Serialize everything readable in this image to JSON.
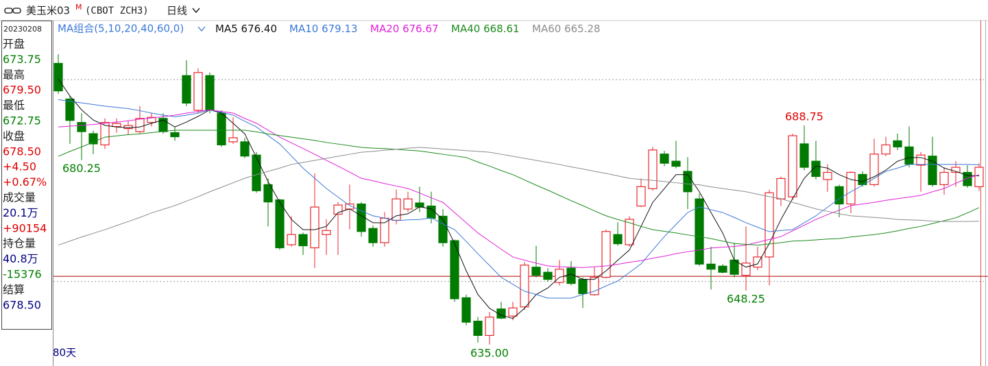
{
  "toolbar": {
    "symbol": "美玉米03",
    "badge": "M",
    "code": "(CBOT ZCH3)",
    "period": "日线"
  },
  "info_panel": {
    "date": "20230208",
    "rows": [
      {
        "text": "开盘",
        "color": "#222222"
      },
      {
        "text": "673.75",
        "color": "#008000"
      },
      {
        "text": "最高",
        "color": "#222222"
      },
      {
        "text": "679.50",
        "color": "#e00000"
      },
      {
        "text": "最低",
        "color": "#222222"
      },
      {
        "text": "672.75",
        "color": "#008000"
      },
      {
        "text": "收盘",
        "color": "#222222"
      },
      {
        "text": "678.50",
        "color": "#e00000"
      },
      {
        "text": "+4.50",
        "color": "#e00000"
      },
      {
        "text": "+0.67%",
        "color": "#e00000"
      },
      {
        "text": "成交量",
        "color": "#222222"
      },
      {
        "text": "20.1万",
        "color": "#000080"
      },
      {
        "text": "+90154",
        "color": "#e00000"
      },
      {
        "text": "持仓量",
        "color": "#222222"
      },
      {
        "text": "40.8万",
        "color": "#000080"
      },
      {
        "text": "-15376",
        "color": "#008000"
      },
      {
        "text": "结算",
        "color": "#222222"
      },
      {
        "text": "678.50",
        "color": "#000080"
      }
    ]
  },
  "chart_data": {
    "type": "candlestick",
    "ma_legend": "MA组合(5,10,20,40,60,0)",
    "days_label": "80天",
    "ylim": [
      629.75,
      714.5
    ],
    "up_color": "#e8262b",
    "down_color": "#007a00",
    "reference_line": {
      "value": 651.75,
      "color": "#b00000"
    },
    "dotted_levels": [
      700,
      650.5
    ],
    "candles": {
      "open": [
        704,
        695.25,
        689.5,
        686.75,
        684,
        688.5,
        688,
        687.25,
        689.5,
        690.5,
        687,
        701,
        692.5,
        701,
        691.75,
        684.75,
        684.75,
        681.5,
        674.25,
        670.5,
        659.5,
        662,
        658.75,
        662,
        667,
        668.25,
        669.5,
        663.5,
        660,
        665.5,
        668.25,
        669.75,
        669,
        666.5,
        660.5,
        646.5,
        640.75,
        637.25,
        643.75,
        642,
        644.25,
        654,
        652.75,
        650.25,
        653.75,
        651,
        647.25,
        651.5,
        662,
        659.5,
        669,
        673.25,
        681.75,
        680,
        677.5,
        670.75,
        654.75,
        654.25,
        655.75,
        652,
        654,
        656.5,
        670.75,
        671.25,
        684.25,
        680,
        675.5,
        673.75,
        669.5,
        676.75,
        674.25,
        681.75,
        685,
        683.5,
        679,
        681.25,
        674.25,
        677.25,
        677.25,
        673.75
      ],
      "high": [
        706.25,
        696,
        691.75,
        687.5,
        690.5,
        690.5,
        690,
        693.5,
        691.75,
        691.75,
        688.5,
        704.75,
        702.75,
        701.75,
        692.5,
        690.75,
        685.75,
        682.25,
        675.75,
        670.75,
        666.5,
        662.5,
        677,
        665.75,
        670,
        674.25,
        670,
        664.25,
        667.5,
        673,
        672.5,
        673.75,
        672.5,
        668.25,
        660.75,
        647.25,
        641.75,
        643,
        645.5,
        645.5,
        655.25,
        659.25,
        653.75,
        655.75,
        655.5,
        651.5,
        654,
        663.25,
        665,
        666.5,
        675.75,
        683.5,
        682.5,
        685,
        681,
        672,
        659,
        654.75,
        660,
        664,
        659,
        673,
        676.25,
        686.75,
        688.75,
        685,
        679.25,
        674.25,
        677.5,
        677.5,
        685.5,
        686,
        686.75,
        688.5,
        682.25,
        686,
        678.5,
        680,
        679,
        679.5
      ],
      "low": [
        696.5,
        684.25,
        680.25,
        681.75,
        683,
        687,
        686.5,
        686.75,
        688.5,
        686.75,
        685,
        693.5,
        691.75,
        691.75,
        683.5,
        684.25,
        680.75,
        672.25,
        664,
        658.25,
        659,
        657,
        653.75,
        657,
        657,
        663.25,
        661.5,
        659,
        659,
        664.5,
        667.5,
        667.5,
        664.75,
        659,
        645.5,
        639.75,
        635.5,
        635,
        641.25,
        641,
        643.5,
        651.5,
        650.5,
        649.5,
        649.5,
        644,
        647,
        651.25,
        659.25,
        659,
        668.75,
        672.75,
        678.75,
        678.25,
        668.25,
        654.25,
        648.5,
        652.5,
        651.5,
        648.25,
        653.25,
        649.5,
        669,
        670.5,
        677.75,
        675.5,
        672.5,
        666.25,
        667.25,
        673.75,
        673.75,
        681.25,
        682.75,
        678.5,
        672.5,
        673.75,
        671.75,
        673.75,
        673.5,
        672.75
      ],
      "close": [
        697.25,
        690,
        687.25,
        684.25,
        689.5,
        689.25,
        688.75,
        690.5,
        690.75,
        687.25,
        686,
        694.25,
        701.75,
        692.5,
        684,
        685.75,
        681.25,
        672.75,
        670,
        658.75,
        662,
        659.25,
        668.75,
        663,
        669.25,
        669.5,
        662.75,
        660,
        666,
        670.75,
        670.75,
        668.75,
        666,
        660,
        646.25,
        640.5,
        637.25,
        641.75,
        641.5,
        644,
        654.5,
        652,
        651,
        653.5,
        650,
        647.5,
        651.5,
        662.75,
        659.75,
        665.75,
        673.75,
        682.75,
        679.5,
        678.75,
        672.5,
        654.75,
        653.5,
        652.75,
        652.25,
        655,
        656.5,
        672.25,
        675.75,
        686.25,
        678.5,
        676.25,
        677.25,
        669.5,
        677.25,
        674.25,
        681.75,
        684,
        683.5,
        679.25,
        681.5,
        674.25,
        677.25,
        678.5,
        674,
        678.5
      ]
    },
    "series": [
      {
        "name": "MA5",
        "legend_value": "676.40",
        "color": "#111111",
        "values": [
          700.2,
          696,
          692.6,
          690.1,
          688.8,
          688.4,
          688.2,
          688.4,
          689.3,
          690.1,
          688.4,
          689.6,
          691,
          692.6,
          691.8,
          689.3,
          686.7,
          680.9,
          675,
          669.9,
          665.7,
          663.2,
          663.2,
          664,
          667.4,
          668.3,
          666.6,
          664.9,
          664.9,
          666.6,
          667.1,
          668.8,
          668.3,
          665.7,
          659.8,
          653.1,
          647.3,
          643.9,
          642.2,
          641.4,
          643.9,
          647.3,
          648.9,
          651.5,
          652.3,
          651,
          651,
          653.1,
          655.7,
          658.2,
          664,
          669.9,
          673.3,
          676.7,
          676.7,
          672.5,
          667.4,
          662.4,
          655.7,
          654,
          654.8,
          659.8,
          665.7,
          670.8,
          675.8,
          678.8,
          678.3,
          676.7,
          675.5,
          675,
          676.2,
          677.8,
          680,
          680.9,
          680.9,
          680,
          678.3,
          677.5,
          676.5,
          676.4
        ]
      },
      {
        "name": "MA10",
        "legend_value": "679.13",
        "color": "#3a78d6",
        "values": [
          695.1,
          694.7,
          694.3,
          693.9,
          693.5,
          693.2,
          692.9,
          692.4,
          691.8,
          691.3,
          690.9,
          691.3,
          691.8,
          692.6,
          692,
          691.3,
          689.8,
          688.4,
          686.3,
          684.2,
          681.3,
          678.3,
          675.8,
          673.3,
          671.2,
          669.1,
          667.8,
          666.6,
          666,
          665.4,
          665.6,
          665.7,
          666.1,
          664.6,
          663.2,
          660.3,
          657.3,
          654.4,
          651.5,
          649.8,
          648.1,
          647.3,
          646.4,
          646.4,
          646.4,
          647.3,
          648.1,
          649.4,
          650.6,
          652.7,
          654.8,
          658.2,
          661.5,
          664.5,
          667.4,
          668.8,
          668.1,
          667.4,
          666.2,
          664.9,
          663.8,
          662.7,
          663,
          663.2,
          664.9,
          666.6,
          668.7,
          670.8,
          672.5,
          674.1,
          675.8,
          677.5,
          678.3,
          679.2,
          679.2,
          679.2,
          679.2,
          679.2,
          679.2,
          679.13
        ]
      },
      {
        "name": "MA20",
        "legend_value": "676.67",
        "color": "#e020d8",
        "values": [
          688.4,
          688.6,
          688.8,
          689,
          689.3,
          689.6,
          689.9,
          690.3,
          690.6,
          690.9,
          691.3,
          691.8,
          692.2,
          692.6,
          692.2,
          691.8,
          690.5,
          689.3,
          687.6,
          685.9,
          684.5,
          683.1,
          681.7,
          680.2,
          678.8,
          677.3,
          675.8,
          675.2,
          674.5,
          673.9,
          673.3,
          672.2,
          671,
          669.9,
          667.4,
          664.9,
          662.4,
          660.4,
          658.4,
          656.5,
          655.7,
          655,
          654.3,
          654.1,
          654,
          653.9,
          654.1,
          654.3,
          654.7,
          655.2,
          655.6,
          656.2,
          656.7,
          657.3,
          657.8,
          658.2,
          658.7,
          658.9,
          659.1,
          659.4,
          660.1,
          660.8,
          661.5,
          662.9,
          664.3,
          665.7,
          666.9,
          668,
          669.1,
          669.5,
          669.9,
          670.4,
          670.8,
          671.2,
          671.6,
          672.5,
          673.3,
          674.6,
          675.8,
          676.67
        ]
      },
      {
        "name": "MA40",
        "legend_value": "668.61",
        "color": "#1a8a1a",
        "values": [
          681.2,
          682.4,
          683.5,
          684.7,
          685.9,
          686.2,
          686.5,
          686.7,
          687,
          687.3,
          687.6,
          687.6,
          687.6,
          687.6,
          687.6,
          687.6,
          687.6,
          687.2,
          686.7,
          686.3,
          685.9,
          685.5,
          685.1,
          684.6,
          684.2,
          683.8,
          683.4,
          683.2,
          683.1,
          682.9,
          682.7,
          682.5,
          682.1,
          681.7,
          681.3,
          680.9,
          679.8,
          678.8,
          677.7,
          676.7,
          675.4,
          674.1,
          672.9,
          671.6,
          670.3,
          669.1,
          667.8,
          666.6,
          665.7,
          664.9,
          664,
          663.2,
          662.8,
          662.4,
          661.9,
          661.5,
          661,
          660.4,
          659.8,
          659.6,
          659.4,
          659.7,
          660,
          660.4,
          660.5,
          660.7,
          660.9,
          661,
          661.4,
          661.7,
          662,
          662.4,
          662.9,
          663.5,
          664,
          664.7,
          665.4,
          666.1,
          667.3,
          668.61
        ]
      },
      {
        "name": "MA60",
        "legend_value": "665.28",
        "color": "#8c8c8c",
        "values": [
          659.4,
          660.4,
          661.4,
          662.3,
          663.2,
          664.2,
          665.2,
          666.2,
          667.3,
          668.2,
          669.1,
          670.2,
          671.3,
          672.5,
          673.6,
          674.7,
          675.8,
          676.7,
          677.5,
          678.3,
          679.2,
          679.7,
          680.2,
          680.7,
          681.2,
          681.7,
          682.2,
          682.4,
          682.7,
          682.9,
          683.2,
          683.4,
          683.2,
          683,
          682.8,
          682.6,
          682.4,
          682.2,
          681.7,
          681.2,
          680.7,
          680.2,
          679.7,
          679.2,
          678.6,
          678.1,
          677.5,
          677,
          676.4,
          675.8,
          675.5,
          675.3,
          675,
          674.7,
          674.4,
          674.2,
          673.7,
          673.3,
          672.9,
          672.5,
          671.9,
          671.3,
          670.8,
          669.9,
          669.1,
          668.3,
          667.7,
          667.1,
          666.6,
          666.4,
          666.2,
          666,
          665.7,
          665.6,
          665.5,
          665.3,
          665.2,
          665.2,
          665.2,
          665.28
        ]
      }
    ],
    "annotations": [
      {
        "candle": 64,
        "value": 688.75,
        "label": "688.75",
        "field": "high",
        "color": "#e00000"
      },
      {
        "candle": 2,
        "value": 680.25,
        "label": "680.25",
        "field": "low",
        "color": "#008000"
      },
      {
        "candle": 37,
        "value": 635,
        "label": "635.00",
        "field": "low",
        "color": "#008000"
      },
      {
        "candle": 59,
        "value": 648.25,
        "label": "648.25",
        "field": "low",
        "color": "#008000"
      }
    ]
  }
}
